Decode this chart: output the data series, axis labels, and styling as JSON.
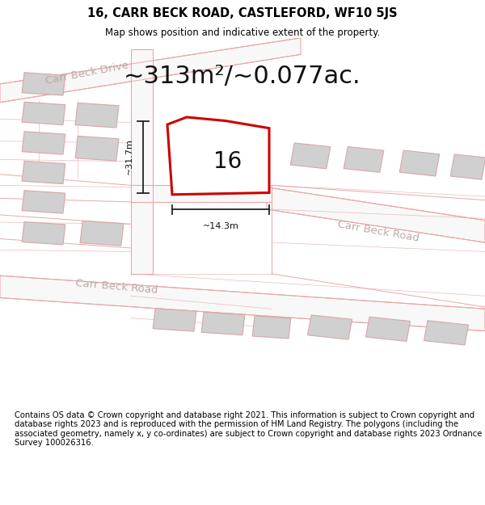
{
  "title": "16, CARR BECK ROAD, CASTLEFORD, WF10 5JS",
  "subtitle": "Map shows position and indicative extent of the property.",
  "area_text": "~313m²/~0.077ac.",
  "label_16": "16",
  "dim_height": "~31.7m",
  "dim_width": "~14.3m",
  "footer": "Contains OS data © Crown copyright and database right 2021. This information is subject to Crown copyright and database rights 2023 and is reproduced with the permission of HM Land Registry. The polygons (including the associated geometry, namely x, y co-ordinates) are subject to Crown copyright and database rights 2023 Ordnance Survey 100026316.",
  "bg_color": "#ffffff",
  "map_bg": "#ececec",
  "road_color": "#e8a8a8",
  "road_fill": "#f8f8f8",
  "building_color": "#d0d0d0",
  "building_edge": "#d8a8a8",
  "plot_fill": "#ffffff",
  "plot_edge_color": "#cc0000",
  "dim_line_color": "#222222",
  "road_label_color": "#c0a8a8",
  "title_fontsize": 10.5,
  "subtitle_fontsize": 8.5,
  "area_fontsize": 22,
  "label_fontsize": 20,
  "dim_fontsize": 8,
  "footer_fontsize": 7.2,
  "road_label_fontsize": 9.5
}
